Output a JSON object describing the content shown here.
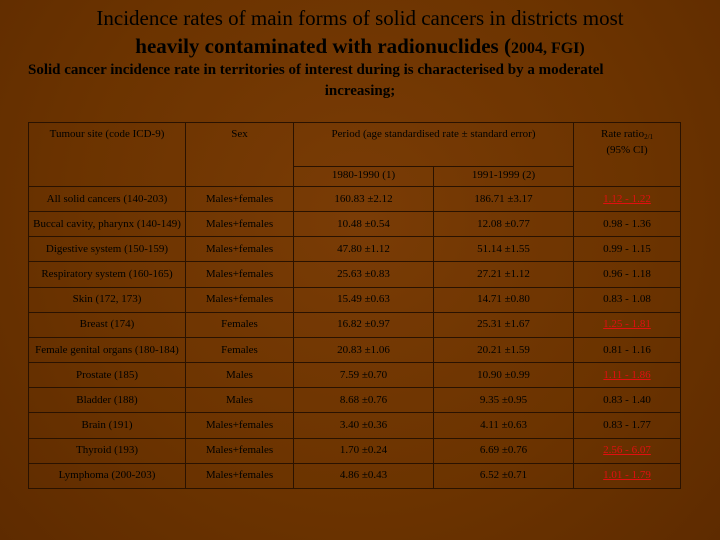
{
  "title": {
    "line1": "Incidence rates of main forms of solid cancers in districts most",
    "line2_main": "heavily contaminated with radionuclides (",
    "line2_small": "2004, FGI",
    "line2_end": ")"
  },
  "subtitle": {
    "line1": "Solid cancer incidence rate in territories of interest during is characterised by a  moderatel",
    "line2": "increasing;"
  },
  "table": {
    "headers": {
      "site": "Tumour site (code ICD-9)",
      "sex": "Sex",
      "period": "Period (age standardised rate ± standard error)",
      "period_1": "1980-1990 (1)",
      "period_2": "1991-1999 (2)",
      "ratio": "Rate ratio",
      "ratio_sub": "2/1",
      "ratio_ci": "(95% CI)"
    },
    "rows": [
      {
        "site": "All solid cancers (140-203)",
        "sex": "Males+females",
        "p1": "160.83 ±2.12",
        "p2": "186.71 ±3.17",
        "ratio": "1.12 - 1.22",
        "significant": true
      },
      {
        "site": "Buccal cavity, pharynx (140-149)",
        "sex": "Males+females",
        "p1": "10.48 ±0.54",
        "p2": "12.08 ±0.77",
        "ratio": "0.98 - 1.36",
        "significant": false
      },
      {
        "site": "Digestive system (150-159)",
        "sex": "Males+females",
        "p1": "47.80 ±1.12",
        "p2": "51.14 ±1.55",
        "ratio": "0.99 - 1.15",
        "significant": false
      },
      {
        "site": "Respiratory system (160-165)",
        "sex": "Males+females",
        "p1": "25.63 ±0.83",
        "p2": "27.21 ±1.12",
        "ratio": "0.96 - 1.18",
        "significant": false
      },
      {
        "site": "Skin (172, 173)",
        "sex": "Males+females",
        "p1": "15.49 ±0.63",
        "p2": "14.71 ±0.80",
        "ratio": "0.83 - 1.08",
        "significant": false
      },
      {
        "site": "Breast (174)",
        "sex": "Females",
        "p1": "16.82 ±0.97",
        "p2": "25.31 ±1.67",
        "ratio": "1.25 - 1.81",
        "significant": true
      },
      {
        "site": "Female genital organs (180-184)",
        "sex": "Females",
        "p1": "20.83 ±1.06",
        "p2": "20.21 ±1.59",
        "ratio": "0.81 - 1.16",
        "significant": false
      },
      {
        "site": "Prostate (185)",
        "sex": "Males",
        "p1": "7.59 ±0.70",
        "p2": "10.90 ±0.99",
        "ratio": "1.11 - 1.86",
        "significant": true
      },
      {
        "site": "Bladder (188)",
        "sex": "Males",
        "p1": "8.68 ±0.76",
        "p2": "9.35 ±0.95",
        "ratio": "0.83 - 1.40",
        "significant": false
      },
      {
        "site": "Brain (191)",
        "sex": "Males+females",
        "p1": "3.40 ±0.36",
        "p2": "4.11 ±0.63",
        "ratio": "0.83 - 1.77",
        "significant": false
      },
      {
        "site": "Thyroid (193)",
        "sex": "Males+females",
        "p1": "1.70 ±0.24",
        "p2": "6.69 ±0.76",
        "ratio": "2.56 - 6.07",
        "significant": true
      },
      {
        "site": "Lymphoma (200-203)",
        "sex": "Males+females",
        "p1": "4.86 ±0.43",
        "p2": "6.52 ±0.71",
        "ratio": "1.01 - 1.79",
        "significant": true
      }
    ]
  },
  "colors": {
    "background": "#6b3300",
    "significant_text": "#e01010",
    "border": "#2a1200"
  }
}
